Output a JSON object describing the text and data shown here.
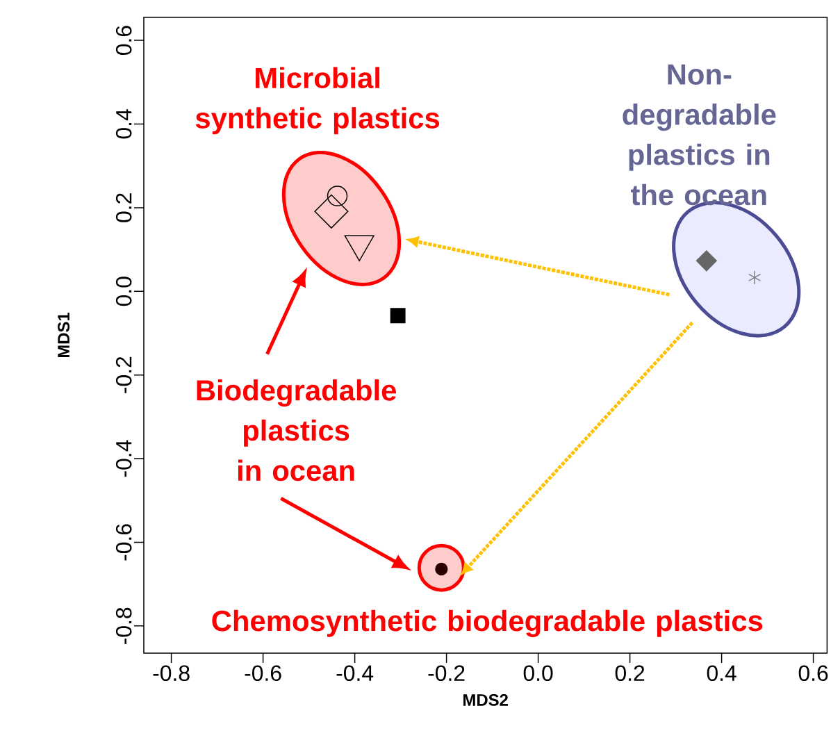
{
  "chart_data": {
    "type": "scatter",
    "xlabel": "MDS2",
    "ylabel": "MDS1",
    "xlim": [
      -0.86,
      0.63
    ],
    "ylim": [
      -0.865,
      0.655
    ],
    "xticks": [
      -0.8,
      -0.6,
      -0.4,
      -0.2,
      {
        "value": 0,
        "label": "0.0"
      },
      0.2,
      0.4,
      0.6
    ],
    "yticks": [
      -0.8,
      -0.6,
      -0.4,
      -0.2,
      {
        "value": 0,
        "label": "0.0"
      },
      0.2,
      0.4,
      0.6
    ],
    "annotations": [
      "Microbial synthetic plastics",
      "Non-degradable plastics in the ocean",
      "Biodegradable plastics in ocean",
      "Chemosynthetic biodegradable plastics"
    ],
    "series": [
      {
        "x": [
          -0.438
        ],
        "values": [
          0.228
        ],
        "color": "#000000",
        "marker": "circle"
      },
      {
        "x": [
          -0.451
        ],
        "values": [
          0.191
        ],
        "color": "#000000",
        "marker": "diamond"
      },
      {
        "x": [
          -0.39
        ],
        "values": [
          0.113
        ],
        "color": "#000000",
        "marker": "triangle"
      },
      {
        "x": [
          -0.306
        ],
        "values": [
          -0.058
        ],
        "color": "#000000",
        "marker": "square"
      },
      {
        "x": [
          -0.211
        ],
        "values": [
          -0.664
        ],
        "color": "#2b0000",
        "marker": "circle"
      },
      {
        "x": [
          0.367
        ],
        "values": [
          0.073
        ],
        "color": "#666666",
        "marker": "diamond"
      },
      {
        "x": [
          0.472
        ],
        "values": [
          0.033
        ],
        "color": "#808080",
        "marker": "cross"
      }
    ]
  }
}
